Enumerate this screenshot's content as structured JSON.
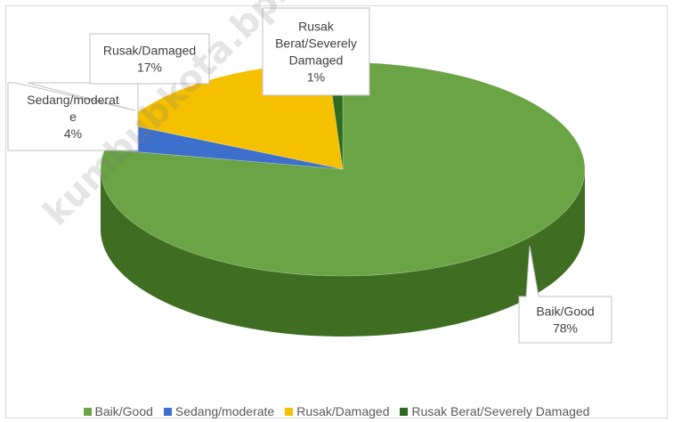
{
  "chart_data": {
    "type": "pie",
    "categories": [
      "Baik/Good",
      "Sedang/moderate",
      "Rusak/Damaged",
      "Rusak Berat/Severely Damaged"
    ],
    "values": [
      78,
      4,
      17,
      1
    ],
    "value_labels": [
      "78%",
      "4%",
      "17%",
      "1%"
    ],
    "data_labels": [
      [
        "Baik/Good",
        "78%"
      ],
      [
        "Sedang/moderat",
        "e",
        "4%"
      ],
      [
        "Rusak/Damaged",
        "17%"
      ],
      [
        "Rusak",
        "Berat/Severely",
        "Damaged",
        "1%"
      ]
    ],
    "colors": [
      "#6aa444",
      "#3d6fcc",
      "#f5c000",
      "#2e6b20"
    ],
    "side_colors": [
      "#3f6e23",
      "#274a8c",
      "#b58d00",
      "#1c4313"
    ],
    "legend_position": "bottom",
    "style": "3d-pie"
  },
  "watermark": "kumbubkota.bps.go.id"
}
